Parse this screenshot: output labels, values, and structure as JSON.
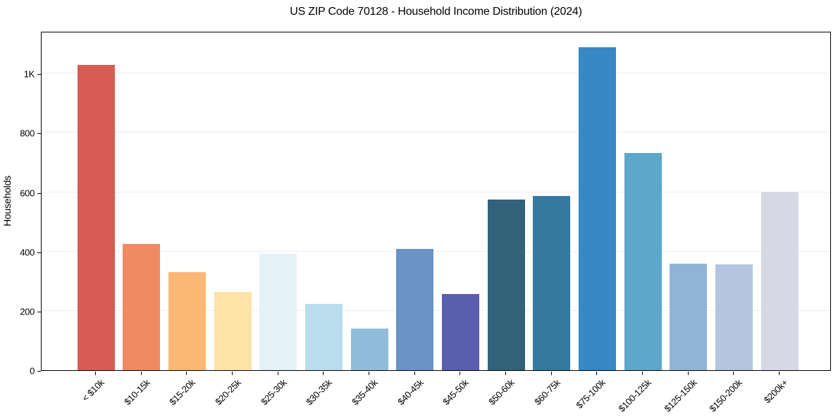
{
  "chart_data": {
    "type": "bar",
    "title": "US ZIP Code 70128 - Household Income Distribution (2024)",
    "xlabel": "",
    "ylabel": "Households",
    "categories": [
      "< $10k",
      "$10-15k",
      "$15-20k",
      "$20-25k",
      "$25-30k",
      "$30-35k",
      "$35-40k",
      "$40-45k",
      "$45-50k",
      "$50-60k",
      "$60-75k",
      "$75-100k",
      "$100-125k",
      "$125-150k",
      "$150-200k",
      "$200k+"
    ],
    "values": [
      1030,
      425,
      331,
      264,
      393,
      224,
      141,
      410,
      256,
      576,
      588,
      1089,
      732,
      358,
      357,
      601
    ],
    "bar_colors": [
      "#d85c53",
      "#f08a62",
      "#fab875",
      "#fce3a6",
      "#e4f1f7",
      "#badded",
      "#92bcdb",
      "#6b93c4",
      "#5a5ead",
      "#33627b",
      "#35799e",
      "#3689c4",
      "#5ca7ca",
      "#90b4d5",
      "#b4c5df",
      "#d6d8e5"
    ],
    "ytick_values": [
      0,
      200,
      400,
      600,
      800,
      1000
    ],
    "ytick_labels": [
      "0",
      "200",
      "400",
      "600",
      "800",
      "1K"
    ],
    "ylim": [
      0,
      1143
    ],
    "grid": "horizontal",
    "grid_color": "#ededf2",
    "legend": null,
    "background_color": "#ffffff",
    "spine_color": "#000000"
  }
}
